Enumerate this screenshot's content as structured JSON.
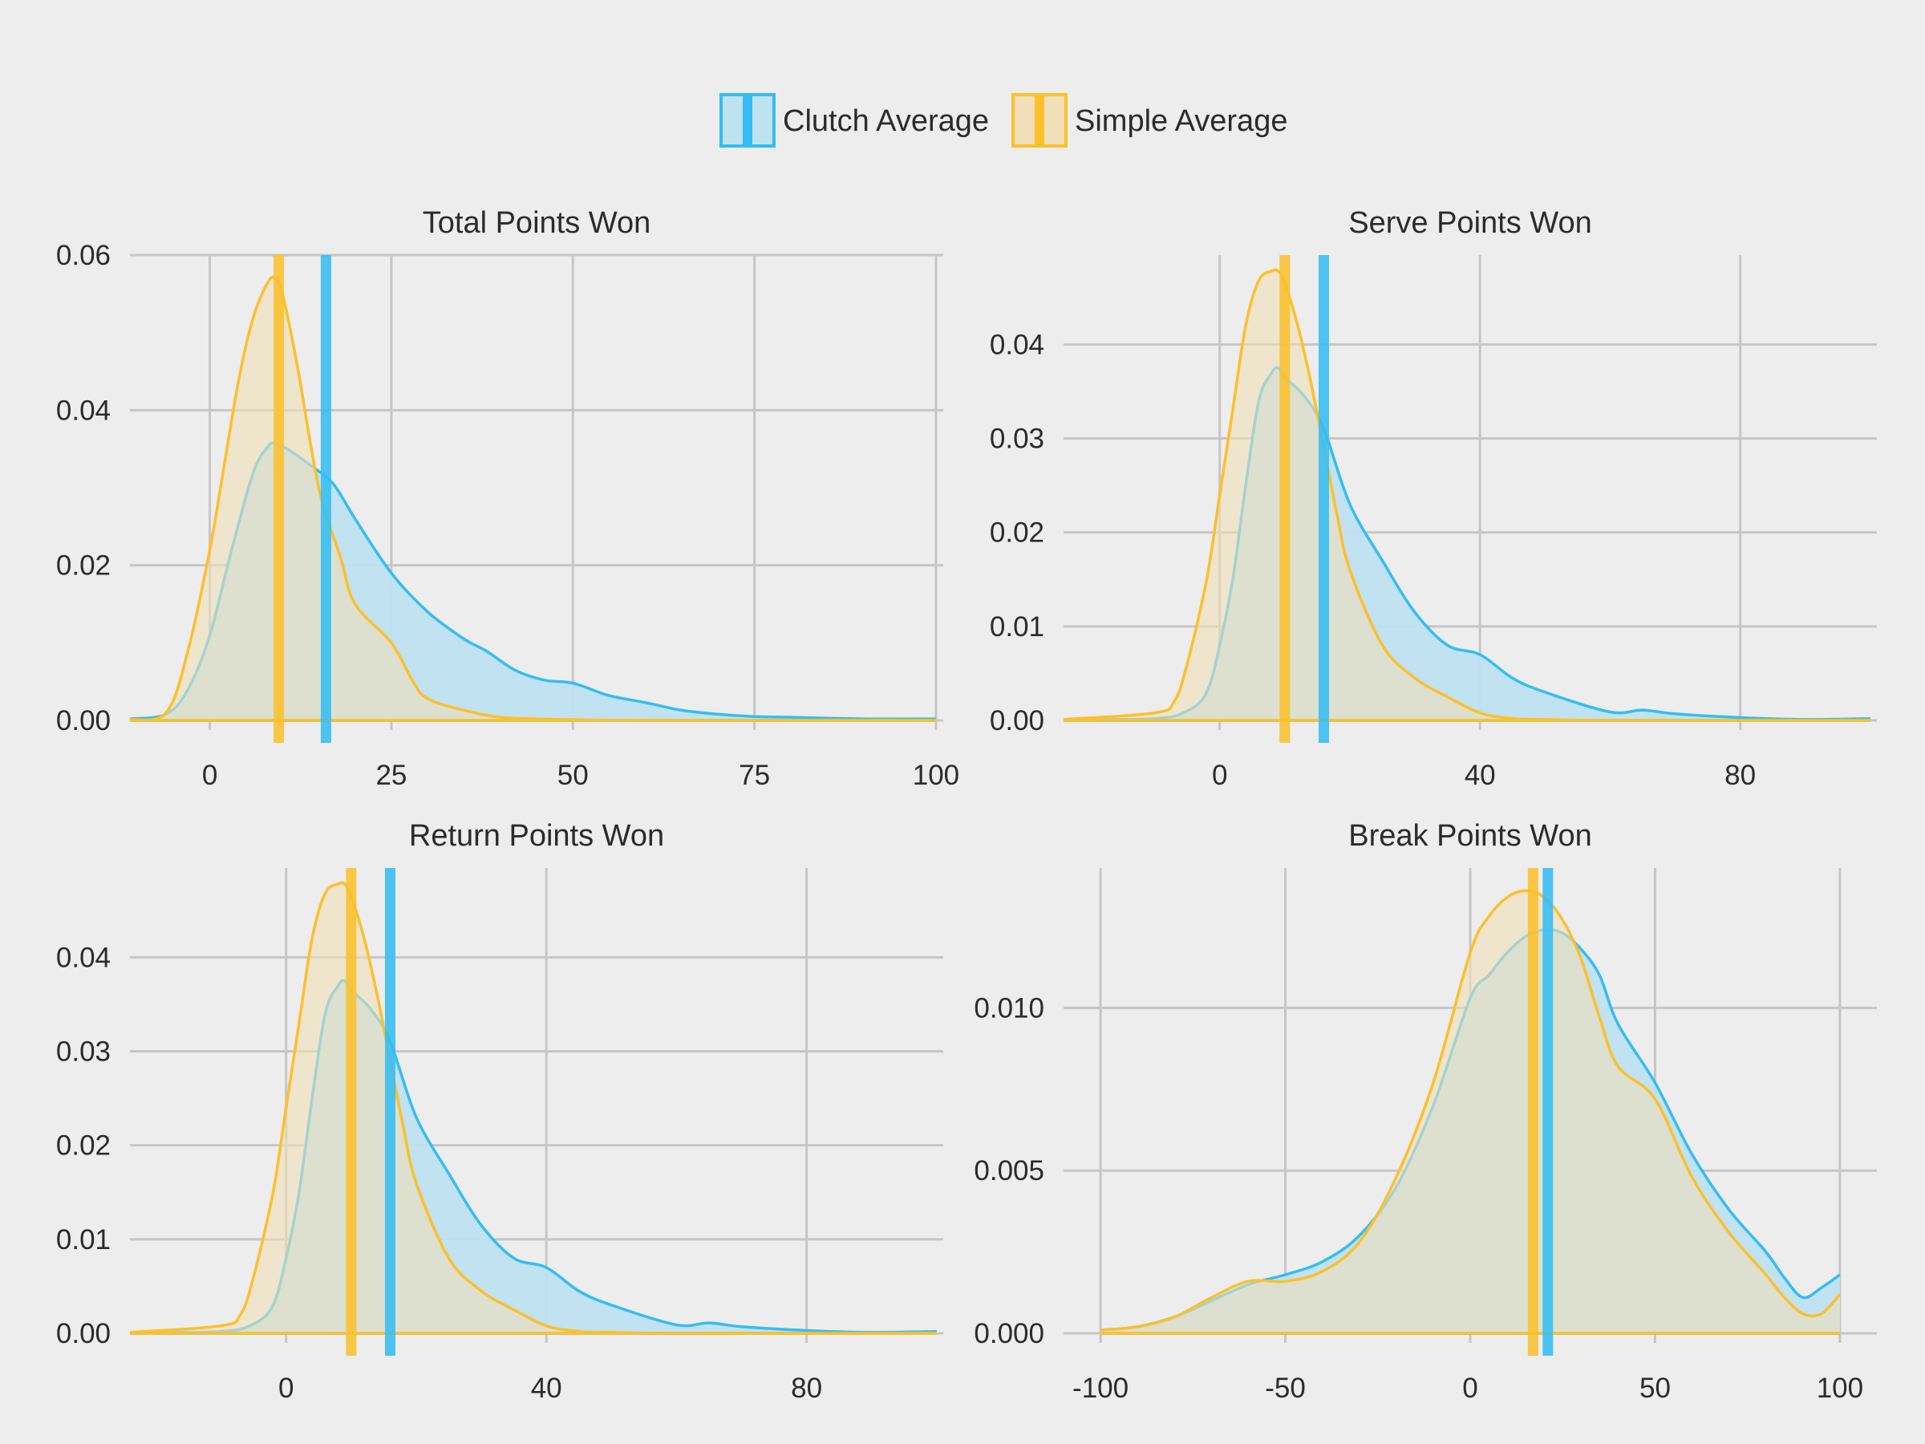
{
  "legend": [
    {
      "label": "Clutch Average",
      "key": "clutch"
    },
    {
      "label": "Simple Average",
      "key": "simple"
    }
  ],
  "colors": {
    "clutch_line": "#35bdf2",
    "clutch_fill": "#bfe2f0",
    "simple_line": "#fbc02d",
    "simple_fill": "#f0dfb8",
    "background": "#ededed",
    "grid": "#c6c6c6"
  },
  "chart_data": [
    {
      "type": "area",
      "title": "Total Points Won",
      "xlabel": "",
      "ylabel": "",
      "xlim": [
        -11,
        101
      ],
      "ylim": [
        0,
        0.06
      ],
      "xticks": [
        0,
        25,
        50,
        75,
        100
      ],
      "xtick_labels": [
        "0",
        "25",
        "50",
        "75",
        "100"
      ],
      "yticks": [
        0,
        0.02,
        0.04,
        0.06
      ],
      "ytick_labels": [
        "0.00",
        "0.02",
        "0.04",
        "0.06"
      ],
      "grid": true,
      "series": [
        {
          "name": "Clutch Average",
          "x": [
            -11,
            -6,
            -3,
            0,
            3,
            6,
            8,
            9,
            11,
            14,
            17,
            20,
            25,
            30,
            35,
            38,
            42,
            46,
            50,
            55,
            60,
            65,
            70,
            75,
            80,
            90,
            100
          ],
          "y": [
            0.0002,
            0.0008,
            0.004,
            0.011,
            0.022,
            0.032,
            0.0353,
            0.0357,
            0.0348,
            0.0328,
            0.0305,
            0.026,
            0.019,
            0.014,
            0.0105,
            0.009,
            0.0065,
            0.0052,
            0.0048,
            0.0032,
            0.0023,
            0.0013,
            0.0008,
            0.0005,
            0.0004,
            0.0002,
            0.0002
          ],
          "mean": 16
        },
        {
          "name": "Simple Average",
          "x": [
            -11,
            -6,
            -3,
            0,
            2,
            4,
            6,
            8,
            9,
            10,
            12,
            15,
            18,
            20,
            25,
            28,
            30,
            35,
            40,
            45,
            50,
            60,
            100
          ],
          "y": [
            0.0001,
            0.001,
            0.009,
            0.022,
            0.033,
            0.044,
            0.052,
            0.0565,
            0.057,
            0.055,
            0.046,
            0.03,
            0.021,
            0.015,
            0.01,
            0.005,
            0.0028,
            0.0013,
            0.0004,
            0.0002,
            0.0001,
            0,
            0
          ],
          "mean": 9.5
        }
      ]
    },
    {
      "type": "area",
      "title": "Serve Points Won",
      "xlabel": "",
      "ylabel": "",
      "xlim": [
        -24,
        101
      ],
      "ylim": [
        0,
        0.0495
      ],
      "xticks": [
        0,
        40,
        80
      ],
      "xtick_labels": [
        "0",
        "40",
        "80"
      ],
      "yticks": [
        0,
        0.01,
        0.02,
        0.03,
        0.04
      ],
      "ytick_labels": [
        "0.00",
        "0.01",
        "0.02",
        "0.03",
        "0.04"
      ],
      "grid": true,
      "series": [
        {
          "name": "Clutch Average",
          "x": [
            -24,
            -10,
            -5,
            -2,
            0,
            2,
            4,
            6,
            8,
            9,
            10,
            13,
            16,
            20,
            25,
            30,
            35,
            40,
            45,
            50,
            60,
            65,
            70,
            80,
            90,
            100
          ],
          "y": [
            0.0001,
            0.0002,
            0.001,
            0.003,
            0.008,
            0.015,
            0.025,
            0.034,
            0.037,
            0.0375,
            0.0365,
            0.0345,
            0.031,
            0.023,
            0.017,
            0.0115,
            0.008,
            0.007,
            0.0045,
            0.003,
            0.0009,
            0.0011,
            0.0007,
            0.0003,
            0.0001,
            0.0002
          ],
          "mean": 16
        },
        {
          "name": "Simple Average",
          "x": [
            -24,
            -10,
            -7,
            -5,
            -2,
            0,
            2,
            4,
            6,
            8,
            9,
            10,
            12,
            14,
            16,
            18,
            20,
            25,
            30,
            35,
            40,
            45,
            50,
            60,
            100
          ],
          "y": [
            0.0001,
            0.0008,
            0.002,
            0.006,
            0.015,
            0.024,
            0.033,
            0.042,
            0.0468,
            0.0478,
            0.0478,
            0.0465,
            0.042,
            0.036,
            0.029,
            0.022,
            0.016,
            0.008,
            0.0045,
            0.0025,
            0.0008,
            0.0002,
            0.0001,
            0,
            0
          ],
          "mean": 10
        }
      ]
    },
    {
      "type": "area",
      "title": "Return Points Won",
      "xlabel": "",
      "ylabel": "",
      "xlim": [
        -24,
        101
      ],
      "ylim": [
        0,
        0.0495
      ],
      "xticks": [
        0,
        40,
        80
      ],
      "xtick_labels": [
        "0",
        "40",
        "80"
      ],
      "yticks": [
        0,
        0.01,
        0.02,
        0.03,
        0.04
      ],
      "ytick_labels": [
        "0.00",
        "0.01",
        "0.02",
        "0.03",
        "0.04"
      ],
      "grid": true,
      "series": [
        {
          "name": "Clutch Average",
          "x": [
            -24,
            -10,
            -5,
            -2,
            0,
            2,
            4,
            6,
            8,
            9,
            10,
            13,
            16,
            20,
            25,
            30,
            35,
            40,
            45,
            50,
            60,
            65,
            70,
            80,
            90,
            100
          ],
          "y": [
            0.0001,
            0.0002,
            0.001,
            0.003,
            0.008,
            0.015,
            0.025,
            0.034,
            0.037,
            0.0375,
            0.0365,
            0.0345,
            0.031,
            0.023,
            0.017,
            0.0115,
            0.008,
            0.007,
            0.0045,
            0.003,
            0.0009,
            0.0011,
            0.0007,
            0.0003,
            0.0001,
            0.0002
          ],
          "mean": 16
        },
        {
          "name": "Simple Average",
          "x": [
            -24,
            -10,
            -7,
            -5,
            -2,
            0,
            2,
            4,
            6,
            8,
            9,
            10,
            12,
            14,
            16,
            18,
            20,
            25,
            30,
            35,
            40,
            45,
            50,
            60,
            100
          ],
          "y": [
            0.0001,
            0.0008,
            0.002,
            0.006,
            0.015,
            0.024,
            0.033,
            0.042,
            0.0468,
            0.0478,
            0.0478,
            0.0465,
            0.042,
            0.036,
            0.029,
            0.022,
            0.016,
            0.008,
            0.0045,
            0.0025,
            0.0008,
            0.0002,
            0.0001,
            0,
            0
          ],
          "mean": 10
        }
      ]
    },
    {
      "type": "area",
      "title": "Break Points Won",
      "xlabel": "",
      "ylabel": "",
      "xlim": [
        -110,
        110
      ],
      "ylim": [
        0,
        0.0143
      ],
      "xticks": [
        -100,
        -50,
        0,
        50,
        100
      ],
      "xtick_labels": [
        "-100",
        "-50",
        "0",
        "50",
        "100"
      ],
      "yticks": [
        0,
        0.005,
        0.01
      ],
      "ytick_labels": [
        "0.000",
        "0.005",
        "0.010"
      ],
      "grid": true,
      "series": [
        {
          "name": "Clutch Average",
          "x": [
            -100,
            -90,
            -80,
            -70,
            -60,
            -50,
            -40,
            -30,
            -20,
            -10,
            0,
            5,
            10,
            15,
            20,
            25,
            30,
            35,
            40,
            50,
            60,
            70,
            80,
            85,
            90,
            95,
            100
          ],
          "y": [
            0.0001,
            0.0002,
            0.0005,
            0.001,
            0.0015,
            0.0018,
            0.0022,
            0.003,
            0.0045,
            0.007,
            0.0103,
            0.011,
            0.0117,
            0.0122,
            0.0124,
            0.0123,
            0.0118,
            0.011,
            0.0095,
            0.0077,
            0.0055,
            0.0038,
            0.0025,
            0.0017,
            0.0011,
            0.0014,
            0.0018
          ],
          "mean": 21
        },
        {
          "name": "Simple Average",
          "x": [
            -100,
            -90,
            -80,
            -70,
            -60,
            -50,
            -40,
            -30,
            -20,
            -10,
            0,
            5,
            10,
            15,
            20,
            25,
            30,
            35,
            40,
            50,
            60,
            70,
            80,
            85,
            90,
            95,
            100
          ],
          "y": [
            0.0001,
            0.0002,
            0.0005,
            0.0011,
            0.0016,
            0.0016,
            0.0019,
            0.0028,
            0.0048,
            0.0077,
            0.0117,
            0.0128,
            0.0134,
            0.0136,
            0.0134,
            0.0127,
            0.0115,
            0.0097,
            0.0082,
            0.0072,
            0.0048,
            0.0031,
            0.0018,
            0.0011,
            0.0006,
            0.0006,
            0.0012
          ],
          "mean": 17
        }
      ]
    }
  ]
}
